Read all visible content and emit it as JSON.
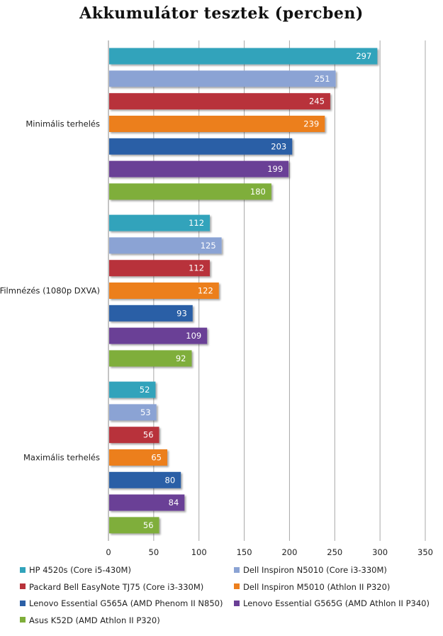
{
  "chart_data": {
    "type": "bar",
    "orientation": "horizontal",
    "title": "Akkumulátor tesztek (percben)",
    "categories": [
      "Minimális terhelés",
      "Filmnézés (1080p DXVA)",
      "Maximális terhelés"
    ],
    "series": [
      {
        "name": "HP 4520s (Core i5-430M)",
        "color": "#31a3bb",
        "values": [
          297,
          112,
          52
        ]
      },
      {
        "name": "Dell Inspiron N5010 (Core i3-330M)",
        "color": "#8ba3d4",
        "values": [
          251,
          125,
          53
        ]
      },
      {
        "name": "Packard Bell EasyNote TJ75 (Core i3-330M)",
        "color": "#b8323a",
        "values": [
          245,
          112,
          56
        ]
      },
      {
        "name": "Dell Inspiron M5010 (Athlon II P320)",
        "color": "#ec7f1d",
        "values": [
          239,
          122,
          65
        ]
      },
      {
        "name": "Lenovo Essential G565A (AMD Phenom II N850)",
        "color": "#2c5fa6",
        "values": [
          203,
          93,
          80
        ]
      },
      {
        "name": "Lenovo Essential G565G (AMD Athlon II P340)",
        "color": "#6a3f96",
        "values": [
          199,
          109,
          84
        ]
      },
      {
        "name": "Asus K52D (AMD Athlon II P320)",
        "color": "#7fae3a",
        "values": [
          180,
          92,
          56
        ]
      }
    ],
    "xlim": [
      0,
      350
    ],
    "xticks": [
      0,
      50,
      100,
      150,
      200,
      250,
      300,
      350
    ],
    "grid": true,
    "data_labels": true,
    "legend_position": "bottom"
  }
}
